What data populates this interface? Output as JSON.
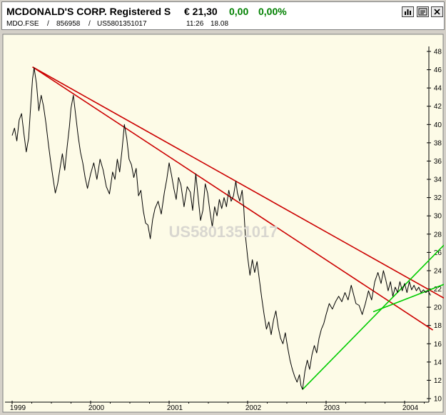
{
  "header": {
    "name": "MCDONALD'S CORP. Registered S",
    "price": "€ 21,30",
    "change": "0,00",
    "change_pct": "0,00%",
    "symbol": "MDO.FSE",
    "wkn": "856958",
    "isin": "US5801351017",
    "separator": "/",
    "time": "11:26",
    "date": "18.08",
    "change_color": "#008000"
  },
  "toolbar": {
    "icons": [
      "bar-chart-icon",
      "news-icon",
      "close-icon"
    ]
  },
  "chart_data": {
    "type": "line",
    "watermark": "US5801351017",
    "grid": false,
    "ylim": [
      10,
      48
    ],
    "xlim": [
      1999.0,
      2004.5
    ],
    "y_ticks": [
      10,
      12,
      14,
      16,
      18,
      20,
      22,
      24,
      26,
      28,
      30,
      32,
      34,
      36,
      38,
      40,
      42,
      44,
      46,
      48
    ],
    "x_ticks": [
      {
        "label": "1999",
        "x": 1999.0
      },
      {
        "label": "2000",
        "x": 2000.0
      },
      {
        "label": "2001",
        "x": 2001.0
      },
      {
        "label": "2002",
        "x": 2002.0
      },
      {
        "label": "2003",
        "x": 2003.0
      },
      {
        "label": "2004",
        "x": 2004.0
      }
    ],
    "series": [
      {
        "color": "#000000",
        "points": [
          [
            1999.0,
            38.8
          ],
          [
            1999.03,
            39.6
          ],
          [
            1999.06,
            38.2
          ],
          [
            1999.09,
            40.5
          ],
          [
            1999.12,
            41.2
          ],
          [
            1999.15,
            39.0
          ],
          [
            1999.18,
            37.0
          ],
          [
            1999.21,
            38.5
          ],
          [
            1999.24,
            42.5
          ],
          [
            1999.26,
            45.0
          ],
          [
            1999.28,
            46.2
          ],
          [
            1999.31,
            44.5
          ],
          [
            1999.34,
            41.5
          ],
          [
            1999.37,
            43.2
          ],
          [
            1999.4,
            42.0
          ],
          [
            1999.43,
            40.2
          ],
          [
            1999.46,
            38.0
          ],
          [
            1999.49,
            36.0
          ],
          [
            1999.52,
            34.2
          ],
          [
            1999.55,
            32.5
          ],
          [
            1999.58,
            33.5
          ],
          [
            1999.61,
            35.2
          ],
          [
            1999.64,
            36.8
          ],
          [
            1999.67,
            35.0
          ],
          [
            1999.7,
            37.5
          ],
          [
            1999.73,
            39.8
          ],
          [
            1999.75,
            41.8
          ],
          [
            1999.78,
            43.2
          ],
          [
            1999.81,
            41.0
          ],
          [
            1999.84,
            38.8
          ],
          [
            1999.87,
            37.0
          ],
          [
            1999.9,
            35.8
          ],
          [
            1999.93,
            34.2
          ],
          [
            1999.96,
            33.0
          ],
          [
            2000.0,
            34.6
          ],
          [
            2000.04,
            35.8
          ],
          [
            2000.08,
            34.0
          ],
          [
            2000.12,
            36.2
          ],
          [
            2000.16,
            35.0
          ],
          [
            2000.2,
            33.2
          ],
          [
            2000.24,
            32.4
          ],
          [
            2000.28,
            34.8
          ],
          [
            2000.31,
            34.0
          ],
          [
            2000.34,
            36.2
          ],
          [
            2000.37,
            34.8
          ],
          [
            2000.4,
            37.2
          ],
          [
            2000.43,
            40.0
          ],
          [
            2000.46,
            38.5
          ],
          [
            2000.49,
            36.2
          ],
          [
            2000.52,
            35.6
          ],
          [
            2000.55,
            34.2
          ],
          [
            2000.58,
            35.2
          ],
          [
            2000.61,
            32.2
          ],
          [
            2000.64,
            32.8
          ],
          [
            2000.67,
            30.6
          ],
          [
            2000.7,
            29.2
          ],
          [
            2000.73,
            29.0
          ],
          [
            2000.76,
            27.5
          ],
          [
            2000.79,
            29.6
          ],
          [
            2000.82,
            30.8
          ],
          [
            2000.86,
            31.6
          ],
          [
            2000.9,
            30.2
          ],
          [
            2000.94,
            32.6
          ],
          [
            2000.97,
            34.0
          ],
          [
            2001.0,
            35.8
          ],
          [
            2001.03,
            34.5
          ],
          [
            2001.06,
            33.0
          ],
          [
            2001.09,
            31.8
          ],
          [
            2001.12,
            34.2
          ],
          [
            2001.15,
            33.4
          ],
          [
            2001.19,
            31.0
          ],
          [
            2001.23,
            33.2
          ],
          [
            2001.27,
            32.6
          ],
          [
            2001.3,
            30.6
          ],
          [
            2001.34,
            34.6
          ],
          [
            2001.37,
            32.0
          ],
          [
            2001.4,
            29.5
          ],
          [
            2001.43,
            30.6
          ],
          [
            2001.46,
            33.5
          ],
          [
            2001.49,
            32.5
          ],
          [
            2001.52,
            30.5
          ],
          [
            2001.55,
            28.8
          ],
          [
            2001.58,
            31.0
          ],
          [
            2001.61,
            30.0
          ],
          [
            2001.64,
            31.8
          ],
          [
            2001.67,
            30.8
          ],
          [
            2001.7,
            32.0
          ],
          [
            2001.73,
            31.0
          ],
          [
            2001.76,
            32.8
          ],
          [
            2001.79,
            31.6
          ],
          [
            2001.82,
            32.2
          ],
          [
            2001.85,
            33.8
          ],
          [
            2001.87,
            32.5
          ],
          [
            2001.9,
            31.6
          ],
          [
            2001.93,
            32.8
          ],
          [
            2001.95,
            31.0
          ],
          [
            2001.97,
            28.0
          ],
          [
            2002.0,
            25.5
          ],
          [
            2002.03,
            23.5
          ],
          [
            2002.06,
            25.2
          ],
          [
            2002.09,
            23.8
          ],
          [
            2002.12,
            25.0
          ],
          [
            2002.15,
            23.0
          ],
          [
            2002.18,
            21.0
          ],
          [
            2002.21,
            19.2
          ],
          [
            2002.24,
            17.6
          ],
          [
            2002.27,
            18.4
          ],
          [
            2002.3,
            17.0
          ],
          [
            2002.33,
            18.6
          ],
          [
            2002.36,
            19.6
          ],
          [
            2002.39,
            17.8
          ],
          [
            2002.42,
            16.6
          ],
          [
            2002.45,
            16.0
          ],
          [
            2002.48,
            17.2
          ],
          [
            2002.51,
            15.6
          ],
          [
            2002.54,
            14.2
          ],
          [
            2002.57,
            13.2
          ],
          [
            2002.6,
            12.4
          ],
          [
            2002.63,
            11.8
          ],
          [
            2002.66,
            12.6
          ],
          [
            2002.68,
            11.4
          ],
          [
            2002.7,
            11.0
          ],
          [
            2002.73,
            13.0
          ],
          [
            2002.76,
            14.2
          ],
          [
            2002.79,
            13.2
          ],
          [
            2002.82,
            14.8
          ],
          [
            2002.85,
            15.8
          ],
          [
            2002.88,
            15.0
          ],
          [
            2002.91,
            16.6
          ],
          [
            2002.94,
            17.6
          ],
          [
            2002.97,
            18.2
          ],
          [
            2003.0,
            19.2
          ],
          [
            2003.04,
            20.4
          ],
          [
            2003.08,
            19.8
          ],
          [
            2003.12,
            20.6
          ],
          [
            2003.16,
            21.2
          ],
          [
            2003.2,
            20.6
          ],
          [
            2003.24,
            21.6
          ],
          [
            2003.28,
            20.8
          ],
          [
            2003.32,
            22.4
          ],
          [
            2003.35,
            21.4
          ],
          [
            2003.38,
            20.4
          ],
          [
            2003.42,
            20.2
          ],
          [
            2003.46,
            19.2
          ],
          [
            2003.5,
            20.4
          ],
          [
            2003.54,
            21.8
          ],
          [
            2003.58,
            20.8
          ],
          [
            2003.62,
            22.8
          ],
          [
            2003.66,
            23.8
          ],
          [
            2003.7,
            22.6
          ],
          [
            2003.73,
            24.0
          ],
          [
            2003.76,
            23.0
          ],
          [
            2003.79,
            21.8
          ],
          [
            2003.82,
            22.8
          ],
          [
            2003.85,
            21.2
          ],
          [
            2003.88,
            22.2
          ],
          [
            2003.91,
            21.6
          ],
          [
            2003.94,
            22.8
          ],
          [
            2003.97,
            21.8
          ],
          [
            2004.0,
            22.6
          ],
          [
            2004.03,
            21.6
          ],
          [
            2004.06,
            22.8
          ],
          [
            2004.09,
            21.9
          ],
          [
            2004.12,
            22.4
          ],
          [
            2004.15,
            21.8
          ],
          [
            2004.18,
            22.2
          ],
          [
            2004.21,
            21.6
          ],
          [
            2004.24,
            21.9
          ],
          [
            2004.27,
            21.6
          ],
          [
            2004.3,
            21.8
          ],
          [
            2004.33,
            21.3
          ]
        ]
      }
    ],
    "trendlines": [
      {
        "color": "#cc0000",
        "from": [
          1999.26,
          46.3
        ],
        "to": [
          2004.5,
          21.0
        ]
      },
      {
        "color": "#cc0000",
        "from": [
          1999.26,
          46.3
        ],
        "to": [
          2004.36,
          17.5
        ]
      },
      {
        "color": "#00cc00",
        "from": [
          2002.7,
          11.0
        ],
        "to": [
          2004.5,
          26.8
        ]
      },
      {
        "color": "#00cc00",
        "from": [
          2003.6,
          19.5
        ],
        "to": [
          2004.5,
          22.5
        ]
      }
    ]
  }
}
